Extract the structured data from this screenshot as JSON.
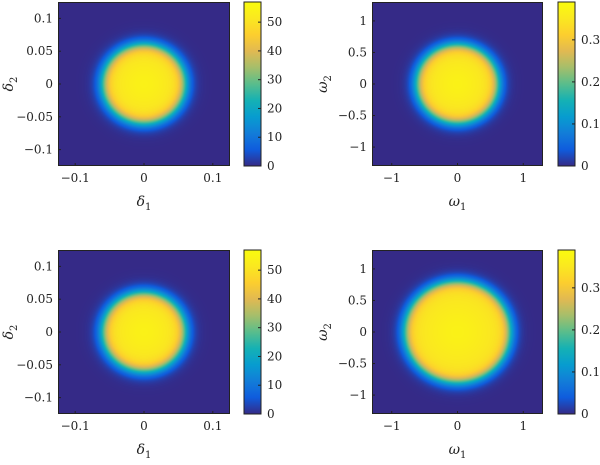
{
  "chart_data": [
    {
      "type": "heatmap",
      "xlabel": "δ",
      "xlabel_sub": "1",
      "ylabel": "δ",
      "ylabel_sub": "2",
      "xlim": [
        -0.125,
        0.125
      ],
      "ylim": [
        -0.125,
        0.125
      ],
      "xticks": [
        -0.1,
        0,
        0.1
      ],
      "xtick_labels": [
        "−0.1",
        "0",
        "0.1"
      ],
      "yticks": [
        -0.1,
        -0.05,
        0,
        0.05,
        0.1
      ],
      "ytick_labels": [
        "−0.1",
        "−0.05",
        "0",
        "0.05",
        "0.1"
      ],
      "colorbar": {
        "range": [
          0,
          57
        ],
        "ticks": [
          0,
          10,
          20,
          30,
          40,
          50
        ],
        "tick_labels": [
          "0",
          "10",
          "20",
          "30",
          "40",
          "50"
        ]
      },
      "field": {
        "shape": "radial",
        "center": [
          0,
          0
        ],
        "peak": 54,
        "plateau_value": 50,
        "plateau_radius": 0.06,
        "falloff_width": 0.012,
        "floor": 0
      }
    },
    {
      "type": "heatmap",
      "xlabel": "ω",
      "xlabel_sub": "1",
      "ylabel": "ω",
      "ylabel_sub": "2",
      "xlim": [
        -1.3,
        1.3
      ],
      "ylim": [
        -1.3,
        1.3
      ],
      "xticks": [
        -1,
        0,
        1
      ],
      "xtick_labels": [
        "−1",
        "0",
        "1"
      ],
      "yticks": [
        -1,
        -0.5,
        0,
        0.5,
        1
      ],
      "ytick_labels": [
        "−1",
        "−0.5",
        "0",
        "0.5",
        "1"
      ],
      "colorbar": {
        "range": [
          0,
          0.39
        ],
        "ticks": [
          0,
          0.1,
          0.2,
          0.3
        ],
        "tick_labels": [
          "0",
          "0.1",
          "0.2",
          "0.3"
        ]
      },
      "field": {
        "shape": "radial",
        "center": [
          0,
          0
        ],
        "peak": 0.37,
        "plateau_value": 0.34,
        "plateau_radius": 0.62,
        "falloff_width": 0.12,
        "floor": 0
      }
    },
    {
      "type": "heatmap",
      "xlabel": "δ",
      "xlabel_sub": "1",
      "ylabel": "δ",
      "ylabel_sub": "2",
      "xlim": [
        -0.125,
        0.125
      ],
      "ylim": [
        -0.125,
        0.125
      ],
      "xticks": [
        -0.1,
        0,
        0.1
      ],
      "xtick_labels": [
        "−0.1",
        "0",
        "0.1"
      ],
      "yticks": [
        -0.1,
        -0.05,
        0,
        0.05,
        0.1
      ],
      "ytick_labels": [
        "−0.1",
        "−0.05",
        "0",
        "0.05",
        "0.1"
      ],
      "colorbar": {
        "range": [
          0,
          57
        ],
        "ticks": [
          0,
          10,
          20,
          30,
          40,
          50
        ],
        "tick_labels": [
          "0",
          "10",
          "20",
          "30",
          "40",
          "50"
        ]
      },
      "field": {
        "shape": "radial",
        "center": [
          0,
          0
        ],
        "peak": 54,
        "plateau_value": 50,
        "plateau_radius": 0.06,
        "falloff_width": 0.012,
        "floor": 0
      }
    },
    {
      "type": "heatmap",
      "xlabel": "ω",
      "xlabel_sub": "1",
      "ylabel": "ω",
      "ylabel_sub": "2",
      "xlim": [
        -1.3,
        1.3
      ],
      "ylim": [
        -1.3,
        1.3
      ],
      "xticks": [
        -1,
        0,
        1
      ],
      "xtick_labels": [
        "−1",
        "0",
        "1"
      ],
      "yticks": [
        -1,
        -0.5,
        0,
        0.5,
        1
      ],
      "ytick_labels": [
        "−1",
        "−0.5",
        "0",
        "0.5",
        "1"
      ],
      "colorbar": {
        "range": [
          0,
          0.39
        ],
        "ticks": [
          0,
          0.1,
          0.2,
          0.3
        ],
        "tick_labels": [
          "0",
          "0.1",
          "0.2",
          "0.3"
        ]
      },
      "field": {
        "shape": "radial",
        "center": [
          0,
          0
        ],
        "peak": 0.37,
        "plateau_value": 0.34,
        "plateau_radius": 0.8,
        "falloff_width": 0.12,
        "floor": 0
      }
    }
  ]
}
